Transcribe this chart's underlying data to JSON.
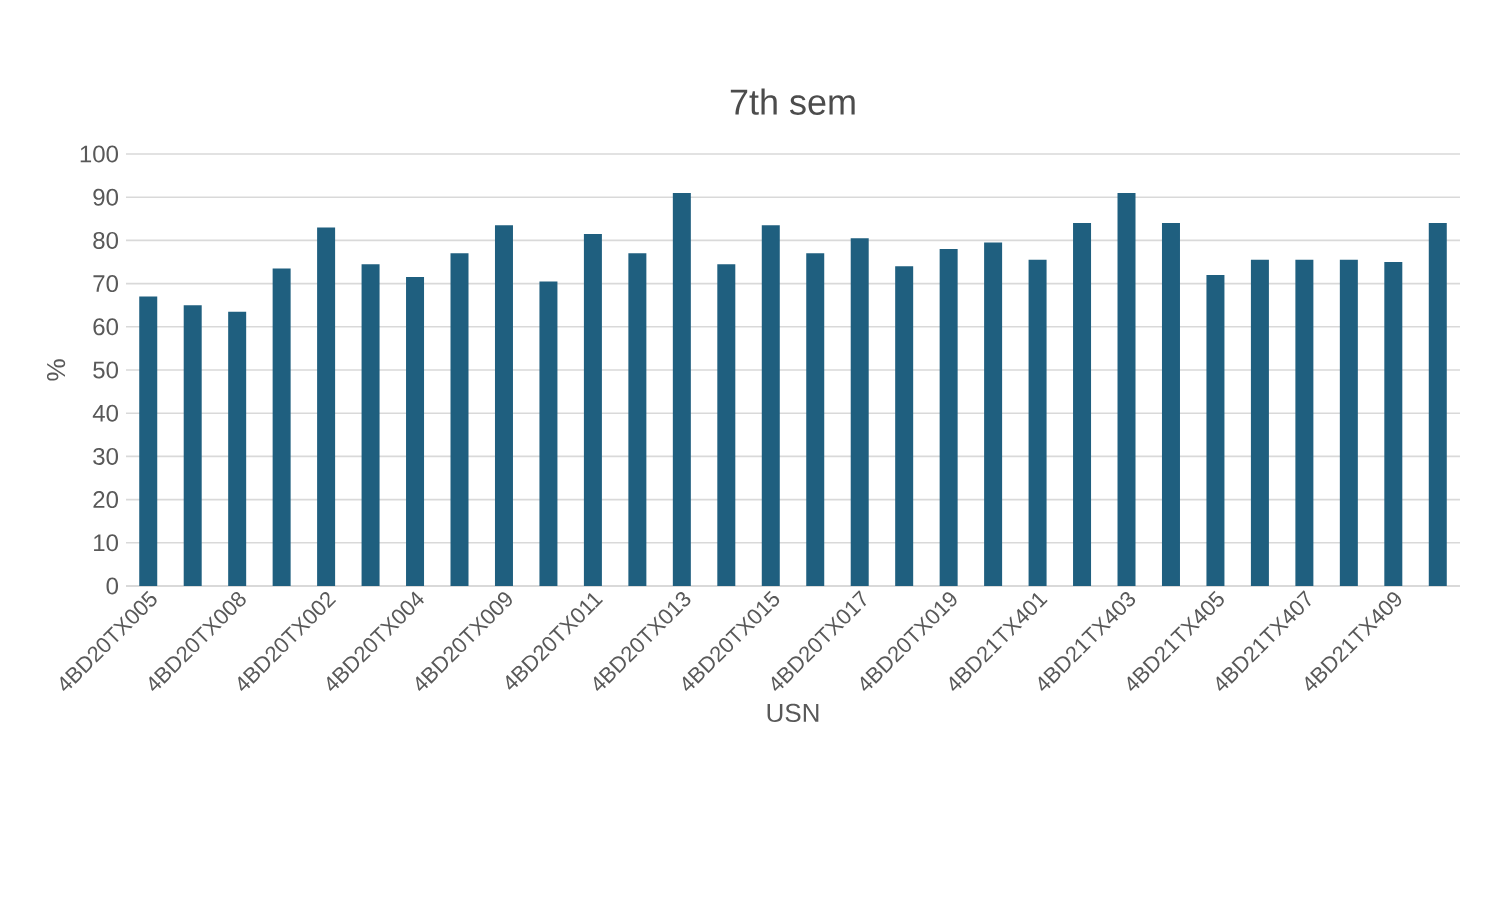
{
  "chart_data": {
    "type": "bar",
    "title": "7th sem",
    "xlabel": "USN",
    "ylabel": "%",
    "categories": [
      "4BD20TX005",
      null,
      "4BD20TX008",
      null,
      "4BD20TX002",
      null,
      "4BD20TX004",
      null,
      "4BD20TX009",
      null,
      "4BD20TX011",
      null,
      "4BD20TX013",
      null,
      "4BD20TX015",
      null,
      "4BD20TX017",
      null,
      "4BD20TX019",
      null,
      "4BD21TX401",
      null,
      "4BD21TX403",
      null,
      "4BD21TX405",
      null,
      "4BD21TX407",
      null,
      "4BD21TX409",
      null
    ],
    "values": [
      67,
      65,
      63.5,
      73.5,
      83,
      74.5,
      71.5,
      77,
      83.5,
      70.5,
      81.5,
      77,
      91,
      74.5,
      83.5,
      77,
      80.5,
      74,
      78,
      79.5,
      75.5,
      84,
      91,
      84,
      72,
      75.5,
      75.5,
      75.5,
      75,
      84
    ],
    "color": "#1f5f7f",
    "ylim": [
      0,
      100
    ],
    "yticks": [
      0,
      10,
      20,
      30,
      40,
      50,
      60,
      70,
      80,
      90,
      100
    ],
    "grid": "y"
  }
}
